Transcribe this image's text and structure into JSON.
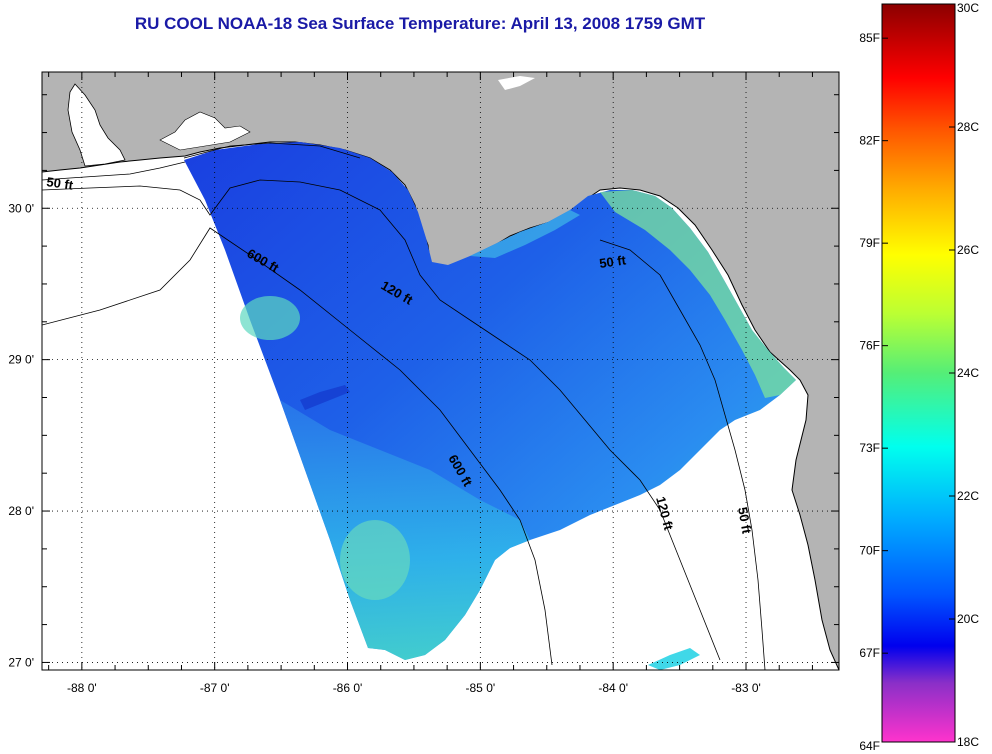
{
  "title": "RU COOL  NOAA-18  Sea Surface Temperature:  April 13, 2008 1759 GMT",
  "map": {
    "lon_labels": [
      "-88 0'",
      "-87 0'",
      "-86 0'",
      "-85 0'",
      "-84 0'",
      "-83 0'"
    ],
    "lat_labels": [
      "30 0'",
      "29 0'",
      "28 0'",
      "27 0'"
    ],
    "lon_range": [
      -88.3,
      -82.3
    ],
    "lat_range": [
      26.95,
      30.9
    ],
    "land_color": "#b4b4b4",
    "isobath_labels": [
      {
        "text": "50 ft"
      },
      {
        "text": "600 ft"
      },
      {
        "text": "120 ft"
      },
      {
        "text": "50 ft"
      },
      {
        "text": "600 ft"
      },
      {
        "text": "120 ft"
      },
      {
        "text": "50 ft"
      }
    ]
  },
  "colorbar": {
    "fahrenheit_labels": [
      "85F",
      "82F",
      "79F",
      "76F",
      "73F",
      "70F",
      "67F",
      "64F"
    ],
    "celsius_labels": [
      "30C",
      "28C",
      "26C",
      "24C",
      "22C",
      "20C",
      "18C"
    ],
    "range_c": [
      18,
      30
    ],
    "colors": [
      "#ff33cc",
      "#8833cc",
      "#0000ee",
      "#0088ff",
      "#00ffff",
      "#44ee88",
      "#ccff33",
      "#ffff00",
      "#ffaa00",
      "#ff5500",
      "#ff0000",
      "#990000"
    ]
  }
}
